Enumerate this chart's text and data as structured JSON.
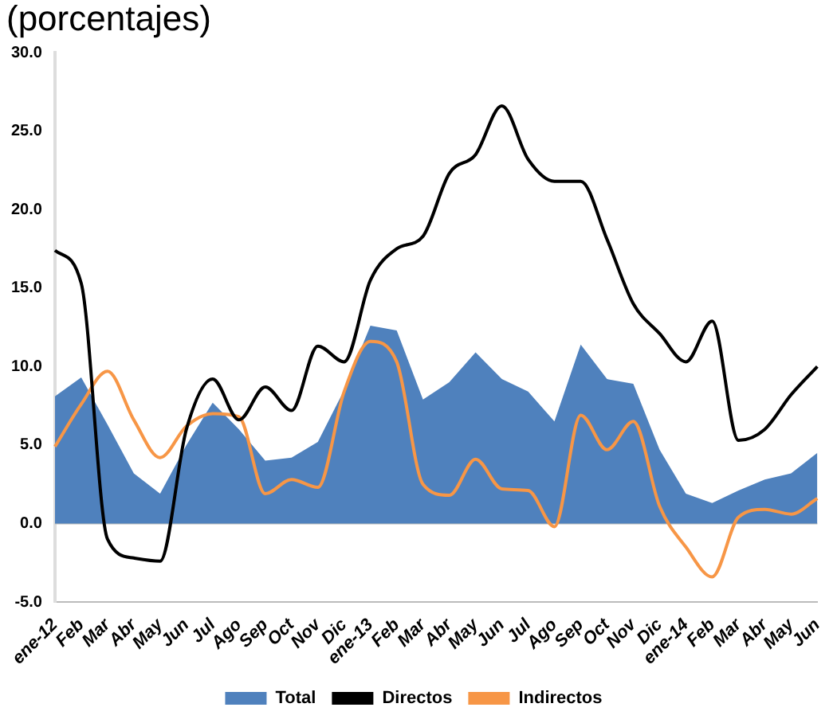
{
  "chart_data": {
    "type": "line",
    "title": "(porcentajes)",
    "categories": [
      "ene-12",
      "Feb",
      "Mar",
      "Abr",
      "May",
      "Jun",
      "Jul",
      "Ago",
      "Sep",
      "Oct",
      "Nov",
      "Dic",
      "ene-13",
      "Feb",
      "Mar",
      "Abr",
      "May",
      "Jun",
      "Jul",
      "Ago",
      "Sep",
      "Oct",
      "Nov",
      "Dic",
      "ene-14",
      "Feb",
      "Mar",
      "Abr",
      "May",
      "Jun"
    ],
    "series": [
      {
        "name": "Total",
        "type": "area",
        "color": "#4f81bd",
        "values": [
          8.1,
          9.3,
          6.3,
          3.2,
          1.9,
          5.0,
          7.7,
          6.0,
          4.0,
          4.2,
          5.2,
          8.5,
          12.6,
          12.3,
          7.9,
          9.0,
          10.9,
          9.2,
          8.4,
          6.5,
          11.4,
          9.2,
          8.9,
          4.7,
          1.9,
          1.3,
          2.1,
          2.8,
          3.2,
          4.5
        ]
      },
      {
        "name": "Directos",
        "type": "line",
        "color": "#000000",
        "values": [
          17.4,
          15.3,
          -1.0,
          -2.2,
          -2.4,
          6.0,
          9.2,
          6.6,
          8.7,
          7.2,
          11.3,
          10.3,
          15.5,
          17.5,
          18.3,
          22.3,
          23.5,
          26.6,
          23.2,
          21.8,
          21.8,
          18.1,
          14.0,
          12.1,
          10.3,
          12.9,
          5.3,
          6.0,
          8.2,
          10.0
        ]
      },
      {
        "name": "Indirectos",
        "type": "line",
        "color": "#f79646",
        "values": [
          4.9,
          7.6,
          9.7,
          6.6,
          4.2,
          6.2,
          7.0,
          6.8,
          1.9,
          2.8,
          2.3,
          8.4,
          11.6,
          10.3,
          2.5,
          1.8,
          4.1,
          2.2,
          2.1,
          -0.2,
          6.9,
          4.7,
          6.5,
          1.1,
          -1.5,
          -3.4,
          0.4,
          0.9,
          0.6,
          1.6
        ]
      }
    ],
    "ylim": [
      -5,
      30
    ],
    "yticks": [
      {
        "value": -5,
        "label": "-5.0"
      },
      {
        "value": 0,
        "label": "0.0"
      },
      {
        "value": 5,
        "label": "5.0"
      },
      {
        "value": 10,
        "label": "10.0"
      },
      {
        "value": 15,
        "label": "15.0"
      },
      {
        "value": 20,
        "label": "20.0"
      },
      {
        "value": 25,
        "label": "25.0"
      },
      {
        "value": 30,
        "label": "30.0"
      }
    ],
    "ref_lines": [
      {
        "axis": "y",
        "value": 0,
        "color": "#bbbbbb"
      }
    ],
    "grid": false,
    "legend": "bottom",
    "marker": "none",
    "line_style": "solid"
  }
}
